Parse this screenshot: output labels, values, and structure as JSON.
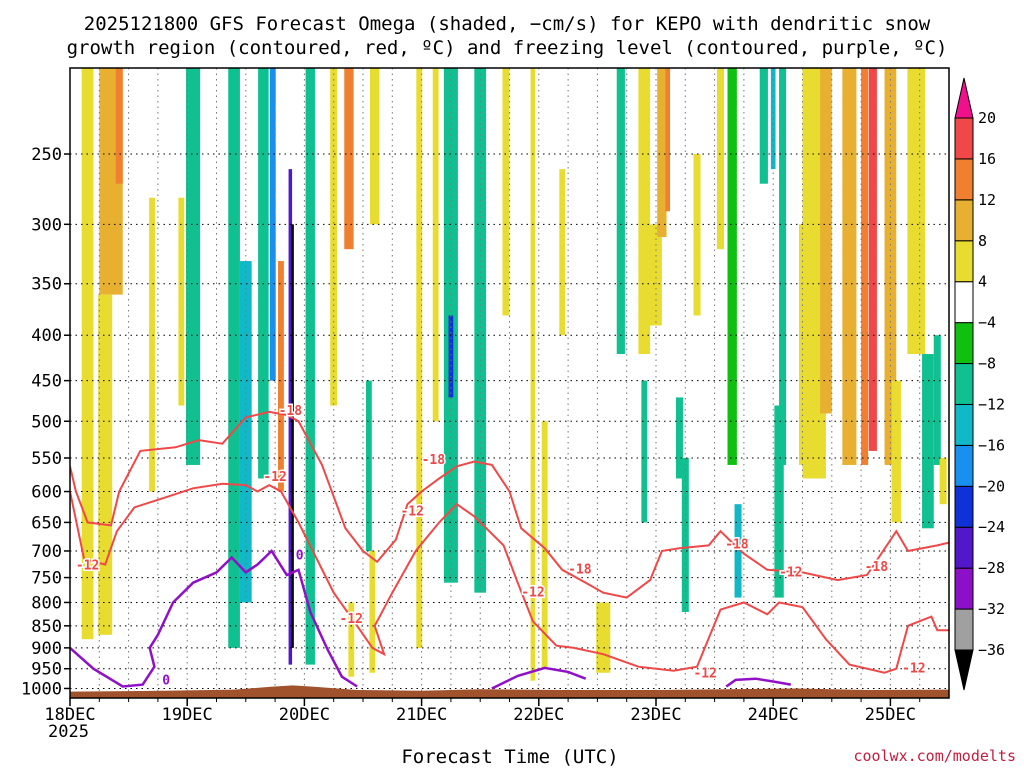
{
  "chart_data": {
    "type": "heatmap",
    "title_lines": [
      "2025121800 GFS Forecast Omega (shaded, −cm/s) for KEPO with dendritic snow",
      "growth region (contoured, red, ºC) and freezing level (contoured, purple, ºC)"
    ],
    "xlabel": "Forecast Time (UTC)",
    "credit": "coolwx.com/modelts",
    "x_start_label": "2025",
    "x_ticks": [
      "18DEC",
      "19DEC",
      "20DEC",
      "21DEC",
      "22DEC",
      "23DEC",
      "24DEC",
      "25DEC"
    ],
    "x_range_days": [
      0,
      7.5
    ],
    "y_ticks": [
      250,
      300,
      350,
      400,
      450,
      500,
      550,
      600,
      650,
      700,
      750,
      800,
      850,
      900,
      950,
      1000
    ],
    "y_range_hpa": [
      1025,
      200
    ],
    "colorbar": {
      "levels": [
        -36,
        -32,
        -28,
        -24,
        -20,
        -16,
        -12,
        -8,
        -4,
        4,
        8,
        12,
        16,
        20
      ],
      "colors": [
        "#000000",
        "#a0a0a0",
        "#8c10c8",
        "#5018c8",
        "#1030d8",
        "#1890f0",
        "#10b8c8",
        "#10c090",
        "#10c010",
        "#ffffff",
        "#e8dc30",
        "#e8b030",
        "#f08030",
        "#f04848",
        "#f0108c"
      ]
    },
    "colors": {
      "dgz_contour": "#f04848",
      "freezing_contour": "#9010c8",
      "terrain": "#a0522d"
    },
    "contour_labels": [
      {
        "text": "-18",
        "day": 1.88,
        "hpa": 487,
        "kind": "dgz"
      },
      {
        "text": "-12",
        "day": 1.75,
        "hpa": 578,
        "kind": "dgz"
      },
      {
        "text": "-18",
        "day": 3.1,
        "hpa": 553,
        "kind": "dgz"
      },
      {
        "text": "-12",
        "day": 2.92,
        "hpa": 632,
        "kind": "dgz"
      },
      {
        "text": "-12",
        "day": 0.15,
        "hpa": 727,
        "kind": "dgz"
      },
      {
        "text": "-12",
        "day": 2.4,
        "hpa": 835,
        "kind": "dgz"
      },
      {
        "text": "-18",
        "day": 4.35,
        "hpa": 734,
        "kind": "dgz"
      },
      {
        "text": "-12",
        "day": 3.95,
        "hpa": 780,
        "kind": "dgz"
      },
      {
        "text": "-18",
        "day": 5.69,
        "hpa": 688,
        "kind": "dgz"
      },
      {
        "text": "-12",
        "day": 6.15,
        "hpa": 740,
        "kind": "dgz"
      },
      {
        "text": "-12",
        "day": 5.42,
        "hpa": 962,
        "kind": "dgz"
      },
      {
        "text": "-18",
        "day": 6.88,
        "hpa": 730,
        "kind": "dgz"
      },
      {
        "text": "-12",
        "day": 7.2,
        "hpa": 950,
        "kind": "dgz"
      },
      {
        "text": "0",
        "day": 0.82,
        "hpa": 980,
        "kind": "fz"
      },
      {
        "text": "0",
        "day": 1.96,
        "hpa": 708,
        "kind": "fz"
      }
    ],
    "dgz_upper": [
      [
        0,
        562
      ],
      [
        0.05,
        600
      ],
      [
        0.15,
        650
      ],
      [
        0.35,
        655
      ],
      [
        0.42,
        600
      ],
      [
        0.6,
        540
      ],
      [
        0.9,
        535
      ],
      [
        1.1,
        525
      ],
      [
        1.3,
        530
      ],
      [
        1.5,
        495
      ],
      [
        1.7,
        488
      ],
      [
        1.85,
        492
      ],
      [
        1.95,
        500
      ],
      [
        2.15,
        560
      ],
      [
        2.35,
        660
      ],
      [
        2.5,
        700
      ],
      [
        2.62,
        720
      ],
      [
        2.78,
        680
      ],
      [
        2.88,
        620
      ],
      [
        3.0,
        600
      ],
      [
        3.15,
        580
      ],
      [
        3.3,
        562
      ],
      [
        3.45,
        555
      ],
      [
        3.6,
        560
      ],
      [
        3.75,
        600
      ],
      [
        3.85,
        660
      ],
      [
        4.05,
        695
      ],
      [
        4.2,
        735
      ],
      [
        4.4,
        760
      ],
      [
        4.55,
        780
      ],
      [
        4.75,
        790
      ],
      [
        4.95,
        755
      ],
      [
        5.05,
        700
      ],
      [
        5.2,
        695
      ],
      [
        5.45,
        690
      ],
      [
        5.55,
        665
      ],
      [
        5.65,
        685
      ],
      [
        5.75,
        705
      ],
      [
        5.95,
        735
      ],
      [
        6.25,
        740
      ],
      [
        6.55,
        755
      ],
      [
        6.8,
        745
      ],
      [
        7.05,
        665
      ],
      [
        7.15,
        700
      ],
      [
        7.4,
        690
      ],
      [
        7.5,
        685
      ]
    ],
    "dgz_lower": [
      [
        0,
        600
      ],
      [
        0.12,
        715
      ],
      [
        0.3,
        725
      ],
      [
        0.4,
        665
      ],
      [
        0.55,
        625
      ],
      [
        0.8,
        610
      ],
      [
        1.05,
        595
      ],
      [
        1.3,
        588
      ],
      [
        1.5,
        590
      ],
      [
        1.6,
        600
      ],
      [
        1.7,
        590
      ],
      [
        1.8,
        600
      ],
      [
        1.95,
        650
      ],
      [
        2.25,
        780
      ],
      [
        2.45,
        850
      ],
      [
        2.58,
        900
      ],
      [
        2.68,
        915
      ],
      [
        2.6,
        850
      ],
      [
        2.75,
        780
      ],
      [
        2.95,
        700
      ],
      [
        3.15,
        650
      ],
      [
        3.3,
        620
      ],
      [
        3.45,
        640
      ],
      [
        3.7,
        690
      ],
      [
        3.82,
        760
      ],
      [
        3.95,
        840
      ],
      [
        4.15,
        895
      ],
      [
        4.3,
        900
      ],
      [
        4.55,
        915
      ],
      [
        4.85,
        945
      ],
      [
        5.15,
        955
      ],
      [
        5.35,
        945
      ],
      [
        5.55,
        815
      ],
      [
        5.75,
        800
      ],
      [
        5.95,
        825
      ],
      [
        6.05,
        800
      ],
      [
        6.25,
        810
      ],
      [
        6.45,
        880
      ],
      [
        6.65,
        940
      ],
      [
        6.95,
        960
      ],
      [
        7.05,
        950
      ],
      [
        7.15,
        850
      ],
      [
        7.35,
        830
      ],
      [
        7.4,
        860
      ],
      [
        7.5,
        860
      ]
    ],
    "freezing_level": [
      [
        0,
        900
      ],
      [
        0.2,
        950
      ],
      [
        0.45,
        995
      ],
      [
        0.62,
        990
      ],
      [
        0.72,
        945
      ],
      [
        0.68,
        900
      ],
      [
        0.75,
        870
      ],
      [
        0.88,
        800
      ],
      [
        1.05,
        760
      ],
      [
        1.25,
        740
      ],
      [
        1.38,
        712
      ],
      [
        1.5,
        740
      ],
      [
        1.6,
        725
      ],
      [
        1.72,
        700
      ],
      [
        1.85,
        745
      ],
      [
        1.95,
        735
      ],
      [
        2.05,
        820
      ],
      [
        2.2,
        905
      ],
      [
        2.32,
        970
      ],
      [
        2.45,
        995
      ]
    ],
    "freezing_level_b": [
      [
        3.6,
        1000
      ],
      [
        3.82,
        968
      ],
      [
        4.05,
        948
      ],
      [
        4.25,
        958
      ],
      [
        4.4,
        975
      ]
    ],
    "freezing_level_c": [
      [
        5.6,
        995
      ],
      [
        5.68,
        978
      ],
      [
        5.85,
        975
      ],
      [
        6.0,
        982
      ],
      [
        6.15,
        990
      ]
    ],
    "terrain": [
      [
        0,
        1008
      ],
      [
        0.8,
        1006
      ],
      [
        1.4,
        1003
      ],
      [
        1.7,
        996
      ],
      [
        1.9,
        992
      ],
      [
        2.1,
        996
      ],
      [
        2.45,
        1004
      ],
      [
        3.0,
        1006
      ],
      [
        3.5,
        1002
      ],
      [
        4.2,
        1004
      ],
      [
        5.0,
        1004
      ],
      [
        5.6,
        1002
      ],
      [
        6.2,
        1000
      ],
      [
        6.8,
        1004
      ],
      [
        7.5,
        1003
      ]
    ],
    "omega_blobs": [
      {
        "day": 0.15,
        "p0": 200,
        "p1": 880,
        "w": 0.1,
        "v": 6
      },
      {
        "day": 0.35,
        "p0": 200,
        "p1": 360,
        "w": 0.2,
        "v": 10
      },
      {
        "day": 0.3,
        "p0": 360,
        "p1": 870,
        "w": 0.12,
        "v": 6
      },
      {
        "day": 0.42,
        "p0": 200,
        "p1": 270,
        "w": 0.06,
        "v": 14
      },
      {
        "day": 0.7,
        "p0": 280,
        "p1": 600,
        "w": 0.05,
        "v": 6
      },
      {
        "day": 0.95,
        "p0": 280,
        "p1": 480,
        "w": 0.05,
        "v": 6
      },
      {
        "day": 1.05,
        "p0": 200,
        "p1": 560,
        "w": 0.12,
        "v": -10
      },
      {
        "day": 1.4,
        "p0": 200,
        "p1": 900,
        "w": 0.1,
        "v": -10
      },
      {
        "day": 1.5,
        "p0": 330,
        "p1": 800,
        "w": 0.1,
        "v": -14
      },
      {
        "day": 1.65,
        "p0": 200,
        "p1": 580,
        "w": 0.09,
        "v": -10
      },
      {
        "day": 1.73,
        "p0": 200,
        "p1": 450,
        "w": 0.05,
        "v": -18
      },
      {
        "day": 1.8,
        "p0": 330,
        "p1": 600,
        "w": 0.05,
        "v": 14
      },
      {
        "day": 1.88,
        "p0": 260,
        "p1": 940,
        "w": 0.03,
        "v": -26
      },
      {
        "day": 1.9,
        "p0": 300,
        "p1": 900,
        "w": 0.02,
        "v": -40
      },
      {
        "day": 2.05,
        "p0": 200,
        "p1": 940,
        "w": 0.08,
        "v": -10
      },
      {
        "day": 2.25,
        "p0": 200,
        "p1": 480,
        "w": 0.06,
        "v": 6
      },
      {
        "day": 2.38,
        "p0": 200,
        "p1": 320,
        "w": 0.08,
        "v": 14
      },
      {
        "day": 2.4,
        "p0": 800,
        "p1": 970,
        "w": 0.05,
        "v": 6
      },
      {
        "day": 2.6,
        "p0": 200,
        "p1": 300,
        "w": 0.08,
        "v": 6
      },
      {
        "day": 2.58,
        "p0": 700,
        "p1": 960,
        "w": 0.05,
        "v": 6
      },
      {
        "day": 2.55,
        "p0": 450,
        "p1": 700,
        "w": 0.05,
        "v": -10
      },
      {
        "day": 2.98,
        "p0": 200,
        "p1": 900,
        "w": 0.05,
        "v": 6
      },
      {
        "day": 3.12,
        "p0": 200,
        "p1": 500,
        "w": 0.05,
        "v": 6
      },
      {
        "day": 3.25,
        "p0": 200,
        "p1": 760,
        "w": 0.12,
        "v": -12
      },
      {
        "day": 3.25,
        "p0": 380,
        "p1": 470,
        "w": 0.04,
        "v": -22
      },
      {
        "day": 3.5,
        "p0": 200,
        "p1": 780,
        "w": 0.1,
        "v": -10
      },
      {
        "day": 3.72,
        "p0": 200,
        "p1": 380,
        "w": 0.06,
        "v": 6
      },
      {
        "day": 3.95,
        "p0": 200,
        "p1": 980,
        "w": 0.04,
        "v": 6
      },
      {
        "day": 4.05,
        "p0": 500,
        "p1": 950,
        "w": 0.05,
        "v": 6
      },
      {
        "day": 4.2,
        "p0": 260,
        "p1": 400,
        "w": 0.05,
        "v": 6
      },
      {
        "day": 4.55,
        "p0": 800,
        "p1": 960,
        "w": 0.12,
        "v": 6
      },
      {
        "day": 4.7,
        "p0": 200,
        "p1": 420,
        "w": 0.07,
        "v": -10
      },
      {
        "day": 4.9,
        "p0": 450,
        "p1": 650,
        "w": 0.05,
        "v": -10
      },
      {
        "day": 4.9,
        "p0": 200,
        "p1": 420,
        "w": 0.1,
        "v": 6
      },
      {
        "day": 4.95,
        "p0": 300,
        "p1": 390,
        "w": 0.2,
        "v": 6
      },
      {
        "day": 5.05,
        "p0": 200,
        "p1": 310,
        "w": 0.08,
        "v": 10
      },
      {
        "day": 5.1,
        "p0": 200,
        "p1": 290,
        "w": 0.04,
        "v": 14
      },
      {
        "day": 5.25,
        "p0": 550,
        "p1": 820,
        "w": 0.06,
        "v": -12
      },
      {
        "day": 5.2,
        "p0": 470,
        "p1": 580,
        "w": 0.06,
        "v": -10
      },
      {
        "day": 5.35,
        "p0": 250,
        "p1": 380,
        "w": 0.06,
        "v": 6
      },
      {
        "day": 5.55,
        "p0": 200,
        "p1": 320,
        "w": 0.06,
        "v": 6
      },
      {
        "day": 5.65,
        "p0": 200,
        "p1": 560,
        "w": 0.08,
        "v": -8
      },
      {
        "day": 5.7,
        "p0": 620,
        "p1": 790,
        "w": 0.06,
        "v": -14
      },
      {
        "day": 5.92,
        "p0": 200,
        "p1": 270,
        "w": 0.07,
        "v": -10
      },
      {
        "day": 6.0,
        "p0": 200,
        "p1": 260,
        "w": 0.04,
        "v": -14
      },
      {
        "day": 6.05,
        "p0": 480,
        "p1": 790,
        "w": 0.08,
        "v": -10
      },
      {
        "day": 6.08,
        "p0": 200,
        "p1": 560,
        "w": 0.06,
        "v": -10
      },
      {
        "day": 6.25,
        "p0": 300,
        "p1": 560,
        "w": 0.06,
        "v": 6
      },
      {
        "day": 6.35,
        "p0": 200,
        "p1": 580,
        "w": 0.2,
        "v": 6
      },
      {
        "day": 6.45,
        "p0": 200,
        "p1": 490,
        "w": 0.1,
        "v": 10
      },
      {
        "day": 6.65,
        "p0": 200,
        "p1": 560,
        "w": 0.12,
        "v": 10
      },
      {
        "day": 6.78,
        "p0": 200,
        "p1": 560,
        "w": 0.06,
        "v": 14
      },
      {
        "day": 6.85,
        "p0": 200,
        "p1": 540,
        "w": 0.07,
        "v": 18
      },
      {
        "day": 7.0,
        "p0": 200,
        "p1": 560,
        "w": 0.1,
        "v": 10
      },
      {
        "day": 7.05,
        "p0": 450,
        "p1": 650,
        "w": 0.08,
        "v": 6
      },
      {
        "day": 7.22,
        "p0": 200,
        "p1": 420,
        "w": 0.15,
        "v": 6
      },
      {
        "day": 7.32,
        "p0": 420,
        "p1": 660,
        "w": 0.1,
        "v": -10
      },
      {
        "day": 7.4,
        "p0": 400,
        "p1": 560,
        "w": 0.06,
        "v": -12
      },
      {
        "day": 7.45,
        "p0": 550,
        "p1": 620,
        "w": 0.06,
        "v": 6
      }
    ]
  }
}
